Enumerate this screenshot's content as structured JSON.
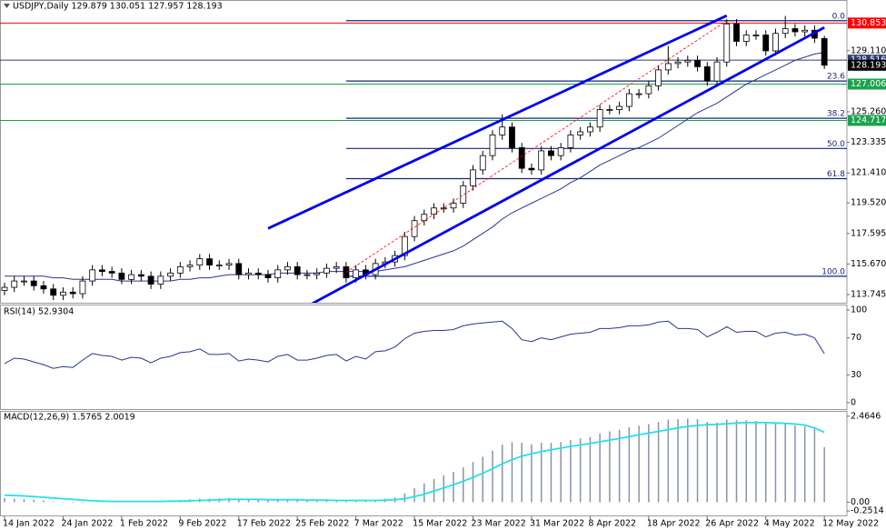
{
  "chart_data": [
    {
      "type": "candlestick",
      "title": "USDJPY,Daily  129.879 130.051 127.957 128.193",
      "categories": [
        "14 Jan 2022",
        null,
        null,
        null,
        null,
        null,
        "24 Jan 2022",
        null,
        null,
        null,
        null,
        null,
        "1 Feb 2022",
        null,
        null,
        null,
        null,
        null,
        "9 Feb 2022",
        null,
        null,
        null,
        null,
        null,
        "17 Feb 2022",
        null,
        null,
        null,
        null,
        null,
        "25 Feb 2022",
        null,
        null,
        null,
        null,
        null,
        "7 Mar 2022",
        null,
        null,
        null,
        null,
        null,
        "15 Mar 2022",
        null,
        null,
        null,
        null,
        null,
        "23 Mar 2022",
        null,
        null,
        null,
        null,
        null,
        "31 Mar 2022",
        null,
        null,
        null,
        null,
        null,
        "8 Apr 2022",
        null,
        null,
        null,
        null,
        null,
        "18 Apr 2022",
        null,
        null,
        null,
        null,
        null,
        "26 Apr 2022",
        null,
        null,
        null,
        null,
        null,
        "4 May 2022",
        null,
        null,
        null,
        null,
        null,
        "12 May 2022"
      ],
      "open": [
        114.0,
        114.2,
        114.6,
        114.6,
        114.3,
        114.1,
        113.7,
        113.9,
        113.8,
        114.6,
        115.3,
        115.2,
        115.1,
        114.7,
        115.0,
        114.9,
        114.4,
        114.9,
        115.1,
        115.5,
        115.6,
        116.0,
        115.6,
        115.6,
        115.7,
        115.0,
        115.1,
        115.0,
        114.8,
        115.3,
        115.5,
        115.0,
        115.0,
        115.1,
        115.4,
        115.5,
        114.8,
        115.3,
        115.0,
        115.7,
        115.8,
        116.2,
        117.4,
        118.4,
        118.8,
        119.2,
        119.2,
        119.5,
        120.6,
        121.6,
        122.5,
        123.8,
        124.3,
        123.0,
        121.7,
        121.6,
        122.8,
        122.5,
        123.0,
        123.8,
        124.0,
        124.3,
        125.4,
        125.4,
        125.6,
        126.4,
        126.4,
        126.9,
        127.9,
        128.3,
        128.4,
        128.5,
        128.1,
        127.2,
        128.4,
        130.8,
        129.7,
        130.1,
        130.1,
        129.1,
        130.2,
        130.5,
        130.3,
        130.4,
        129.879
      ],
      "high": [
        114.5,
        114.9,
        114.9,
        114.9,
        114.6,
        114.4,
        114.2,
        114.2,
        114.9,
        115.6,
        115.6,
        115.5,
        115.4,
        115.3,
        115.3,
        115.2,
        115.2,
        115.4,
        115.8,
        115.9,
        116.3,
        116.3,
        115.9,
        116.0,
        116.0,
        115.4,
        115.4,
        115.3,
        115.6,
        115.8,
        115.8,
        115.3,
        115.4,
        115.7,
        115.8,
        115.8,
        115.6,
        115.6,
        116.0,
        116.1,
        116.5,
        117.7,
        118.7,
        119.1,
        119.5,
        119.5,
        119.8,
        120.9,
        121.9,
        122.8,
        124.1,
        125.1,
        124.6,
        123.3,
        122.0,
        123.1,
        123.1,
        123.3,
        124.1,
        124.3,
        124.6,
        125.7,
        125.7,
        125.9,
        126.7,
        126.7,
        127.2,
        128.2,
        129.4,
        128.7,
        128.8,
        128.8,
        128.4,
        128.7,
        131.1,
        131.1,
        130.4,
        130.4,
        130.4,
        130.5,
        131.3,
        130.8,
        130.7,
        130.7,
        130.051
      ],
      "low": [
        113.7,
        113.9,
        114.3,
        114.0,
        113.8,
        113.4,
        113.4,
        113.5,
        113.5,
        114.3,
        114.9,
        114.8,
        114.4,
        114.4,
        114.6,
        114.1,
        114.1,
        114.6,
        114.8,
        115.2,
        115.3,
        115.3,
        115.3,
        115.3,
        114.7,
        114.7,
        114.7,
        114.5,
        114.5,
        115.0,
        114.7,
        114.7,
        114.7,
        114.8,
        115.1,
        114.5,
        114.5,
        114.7,
        114.7,
        115.4,
        115.5,
        115.9,
        117.1,
        118.1,
        118.5,
        118.9,
        118.9,
        119.2,
        120.3,
        121.3,
        122.2,
        123.5,
        122.7,
        121.4,
        121.3,
        121.3,
        122.2,
        122.2,
        122.7,
        123.5,
        123.7,
        124.0,
        125.1,
        125.1,
        125.3,
        126.1,
        126.1,
        126.6,
        127.6,
        128.0,
        128.1,
        127.8,
        126.9,
        126.9,
        128.1,
        129.4,
        129.4,
        129.8,
        128.8,
        128.8,
        129.9,
        130.0,
        130.0,
        129.6,
        127.957
      ],
      "close": [
        114.2,
        114.6,
        114.6,
        114.3,
        114.1,
        113.7,
        113.9,
        113.8,
        114.6,
        115.3,
        115.2,
        115.1,
        114.7,
        115.0,
        114.9,
        114.4,
        114.9,
        115.1,
        115.5,
        115.6,
        116.0,
        115.6,
        115.6,
        115.7,
        115.0,
        115.1,
        115.0,
        114.8,
        115.3,
        115.5,
        115.0,
        115.0,
        115.1,
        115.4,
        115.5,
        114.8,
        115.3,
        115.0,
        115.7,
        115.8,
        116.2,
        117.4,
        118.4,
        118.8,
        119.2,
        119.2,
        119.5,
        120.6,
        121.6,
        122.5,
        123.8,
        124.3,
        123.0,
        121.7,
        121.6,
        122.8,
        122.5,
        123.0,
        123.8,
        124.0,
        124.3,
        125.4,
        125.4,
        125.6,
        126.4,
        126.4,
        126.9,
        127.9,
        128.3,
        128.4,
        128.5,
        128.1,
        127.2,
        128.4,
        130.8,
        129.7,
        130.1,
        130.1,
        129.1,
        130.2,
        130.5,
        130.3,
        130.4,
        129.9,
        128.193
      ],
      "up_color": "#ffffff",
      "down_color": "#000000",
      "ma": {
        "color": "#283593",
        "values": [
          114.9,
          114.9,
          114.9,
          114.9,
          114.9,
          114.8,
          114.8,
          114.7,
          114.7,
          114.7,
          114.7,
          114.7,
          114.6,
          114.6,
          114.6,
          114.6,
          114.6,
          114.6,
          114.7,
          114.7,
          114.8,
          114.8,
          114.9,
          115.0,
          115.0,
          115.0,
          115.0,
          115.0,
          115.1,
          115.1,
          115.1,
          115.1,
          115.1,
          115.2,
          115.2,
          115.2,
          115.2,
          115.2,
          115.2,
          115.3,
          115.4,
          115.5,
          115.7,
          115.9,
          116.1,
          116.3,
          116.5,
          116.8,
          117.2,
          117.6,
          118.0,
          118.5,
          118.9,
          119.2,
          119.5,
          119.8,
          120.1,
          120.4,
          120.8,
          121.1,
          121.5,
          121.9,
          122.2,
          122.5,
          122.8,
          123.0,
          123.3,
          123.6,
          124.0,
          124.4,
          124.8,
          125.2,
          125.5,
          125.8,
          126.2,
          126.6,
          127.0,
          127.3,
          127.6,
          127.9,
          128.2,
          128.5,
          128.7,
          128.9,
          129.0
        ]
      },
      "ylim": [
        113.23,
        132.19
      ],
      "yticks": [
        {
          "value": 129.11,
          "label": "129.110"
        },
        {
          "value": 125.26,
          "label": "125.260"
        },
        123.335,
        {
          "value": 121.41,
          "label": "121.410"
        },
        {
          "value": 119.52,
          "label": "119.520"
        },
        117.595,
        {
          "value": 115.67,
          "label": "115.670"
        },
        113.745
      ],
      "price_lines": [
        {
          "value": 130.853,
          "color": "#ff0000",
          "line": true
        },
        {
          "value": 128.516,
          "color": "#2c3e70",
          "line": true
        },
        {
          "value": 128.193,
          "color": "#000000",
          "line": false
        },
        {
          "value": 127.006,
          "color": "#1aa34a",
          "line": true
        },
        {
          "value": 124.717,
          "color": "#1aa34a",
          "line": true
        }
      ],
      "fib_start": 35,
      "fib_color": "#1a237e",
      "fib_levels": [
        {
          "label": "0.0",
          "value": 131.0
        },
        {
          "label": "23.6",
          "value": 127.2
        },
        {
          "label": "38.2",
          "value": 124.85
        },
        {
          "label": "50.0",
          "value": 122.95
        },
        {
          "label": "61.8",
          "value": 121.05
        },
        {
          "label": "100.0",
          "value": 114.9
        }
      ],
      "trendlines": [
        {
          "x": [
            27,
            74
          ],
          "y": [
            117.91,
            131.32
          ],
          "color": "#0000ee",
          "dashed": false
        },
        {
          "x": [
            31,
            84
          ],
          "y": [
            113.0,
            130.57
          ],
          "color": "#0000ee",
          "dashed": false
        },
        {
          "x": [
            35,
            74
          ],
          "y": [
            115.14,
            131.0
          ],
          "color": "#ff0000",
          "dashed": true
        }
      ]
    },
    {
      "type": "line",
      "title": "RSI(14) 52.9304",
      "color": "#283593",
      "values": [
        42,
        48,
        47,
        44,
        41,
        37,
        39,
        38,
        46,
        53,
        51,
        50,
        46,
        49,
        48,
        43,
        48,
        50,
        54,
        55,
        58,
        52,
        52,
        53,
        45,
        47,
        46,
        44,
        50,
        52,
        46,
        46,
        48,
        51,
        52,
        45,
        50,
        47,
        55,
        56,
        60,
        69,
        75,
        77,
        78,
        78,
        79,
        83,
        85,
        86,
        87,
        88,
        80,
        68,
        66,
        70,
        68,
        71,
        74,
        75,
        76,
        80,
        80,
        81,
        83,
        83,
        84,
        87,
        88,
        80,
        80,
        79,
        71,
        76,
        82,
        76,
        77,
        77,
        71,
        75,
        76,
        73,
        74,
        70,
        52.9304
      ],
      "ylim": [
        -7,
        105
      ],
      "yticks": [
        100,
        70,
        30,
        0
      ]
    },
    {
      "type": "macd",
      "title": "MACD(12,26,9) 1.5765 2.0019",
      "histogram": {
        "color": "#8793a6",
        "values": [
          0.12,
          0.1,
          0.09,
          0.07,
          0.05,
          0.02,
          0.01,
          -0.02,
          -0.02,
          0,
          0.01,
          0.02,
          0.02,
          0.03,
          0.03,
          0.02,
          0.03,
          0.04,
          0.06,
          0.08,
          0.1,
          0.1,
          0.11,
          0.12,
          0.09,
          0.08,
          0.07,
          0.05,
          0.06,
          0.07,
          0.05,
          0.04,
          0.04,
          0.05,
          0.06,
          0.03,
          0.04,
          0.04,
          0.07,
          0.1,
          0.14,
          0.25,
          0.4,
          0.54,
          0.67,
          0.77,
          0.87,
          1.0,
          1.15,
          1.3,
          1.48,
          1.65,
          1.72,
          1.7,
          1.66,
          1.7,
          1.7,
          1.72,
          1.78,
          1.83,
          1.87,
          1.97,
          2.03,
          2.08,
          2.15,
          2.19,
          2.24,
          2.3,
          2.37,
          2.38,
          2.4,
          2.38,
          2.3,
          2.28,
          2.37,
          2.35,
          2.35,
          2.33,
          2.26,
          2.26,
          2.25,
          2.2,
          2.17,
          2.1,
          1.5765
        ]
      },
      "signal": {
        "color": "#22e0f0",
        "values": [
          0.2,
          0.19,
          0.18,
          0.16,
          0.14,
          0.12,
          0.1,
          0.08,
          0.06,
          0.04,
          0.03,
          0.02,
          0.02,
          0.02,
          0.02,
          0.02,
          0.02,
          0.03,
          0.03,
          0.04,
          0.05,
          0.06,
          0.07,
          0.08,
          0.08,
          0.08,
          0.08,
          0.07,
          0.07,
          0.07,
          0.07,
          0.06,
          0.06,
          0.06,
          0.05,
          0.05,
          0.05,
          0.05,
          0.05,
          0.06,
          0.07,
          0.1,
          0.16,
          0.23,
          0.32,
          0.41,
          0.5,
          0.6,
          0.71,
          0.83,
          0.96,
          1.1,
          1.22,
          1.32,
          1.39,
          1.45,
          1.5,
          1.55,
          1.6,
          1.64,
          1.68,
          1.73,
          1.78,
          1.83,
          1.88,
          1.93,
          1.98,
          2.03,
          2.08,
          2.13,
          2.17,
          2.2,
          2.22,
          2.23,
          2.25,
          2.27,
          2.28,
          2.28,
          2.28,
          2.27,
          2.26,
          2.24,
          2.21,
          2.13,
          2.0019
        ]
      },
      "ylim": [
        -0.38,
        2.59
      ],
      "yticks": [
        2.4646,
        {
          "value": 0,
          "label": "0.00"
        },
        -0.2514
      ]
    }
  ]
}
